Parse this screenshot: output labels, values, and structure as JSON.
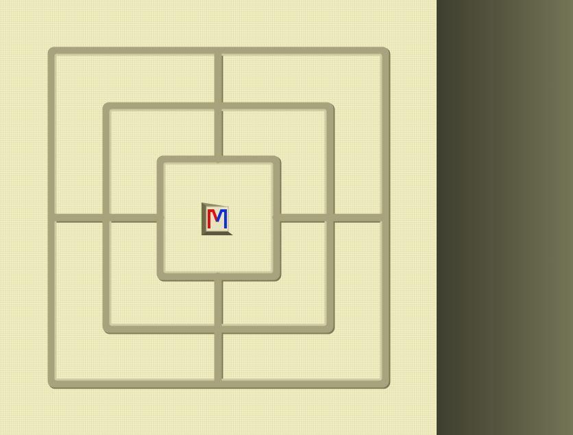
{
  "game": {
    "type": "nine-men-morris",
    "board_color": "#eeebbd",
    "groove_color": "#a9a37d",
    "side_panel_colors": [
      "#3f3f30",
      "#747456"
    ]
  },
  "center_logo": {
    "letter": "M",
    "icon": "mill-logo-icon",
    "colors": {
      "left_stroke": "#e01010",
      "right_stroke": "#1030e0",
      "face": "#e7e3bf"
    }
  }
}
